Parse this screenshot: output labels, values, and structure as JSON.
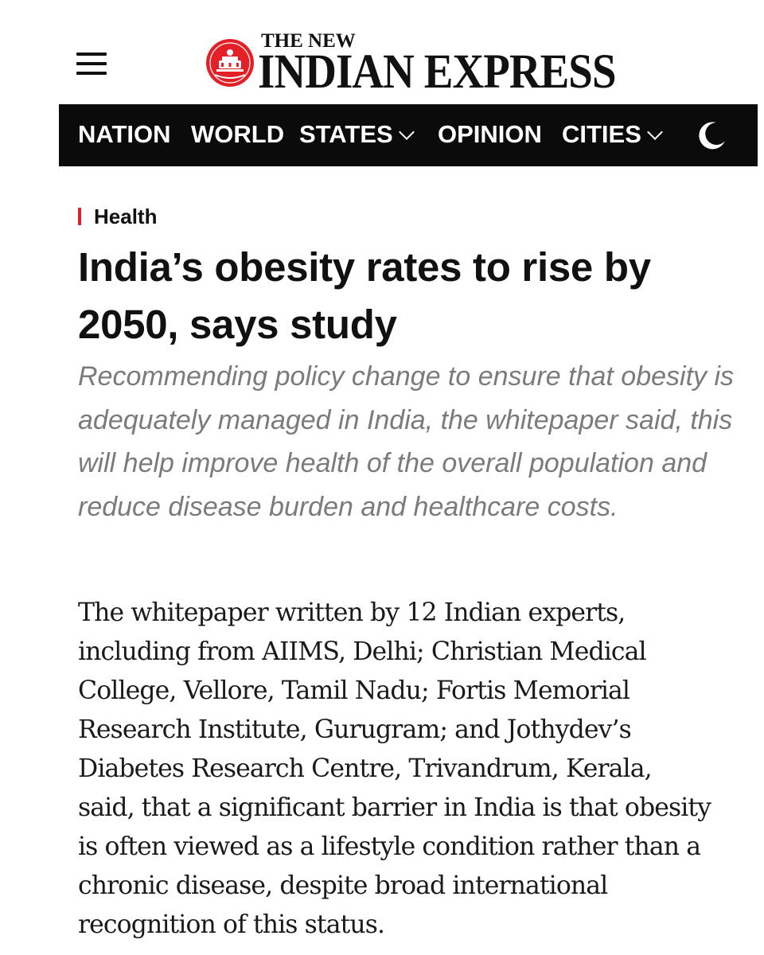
{
  "header": {
    "logo_top": "THE NEW",
    "logo_main": "INDIAN EXPRESS"
  },
  "nav": {
    "items": [
      {
        "label": "NATION"
      },
      {
        "label": "WORLD"
      },
      {
        "label": "STATES"
      },
      {
        "label": "OPINION"
      },
      {
        "label": "CITIES"
      }
    ]
  },
  "article": {
    "category": "Health",
    "headline": "India’s obesity rates to rise by 2050, says study",
    "subheadline": "Recommending policy change to ensure that obesity is adequately managed in India, the whitepaper said, this will help improve health of the overall population and reduce disease burden and healthcare costs.",
    "body": "The whitepaper written by 12 Indian experts, including from AIIMS, Delhi; Christian Medical College, Vellore, Tamil Nadu; Fortis Memorial Research Institute, Gurugram; and Jothydev’s Diabetes Research Centre, Trivandrum, Kerala, said, that a significant barrier in India is that obesity is often viewed as a lifestyle condition rather than a chronic disease, despite broad international recognition of this status."
  },
  "colors": {
    "accent": "#d9232d",
    "navbar_bg": "#0b0b0b",
    "subhead_gray": "#7b7b7b"
  },
  "icons": {
    "menu": "hamburger-menu-icon",
    "theme": "moon-icon",
    "dropdown": "chevron-down-icon"
  }
}
